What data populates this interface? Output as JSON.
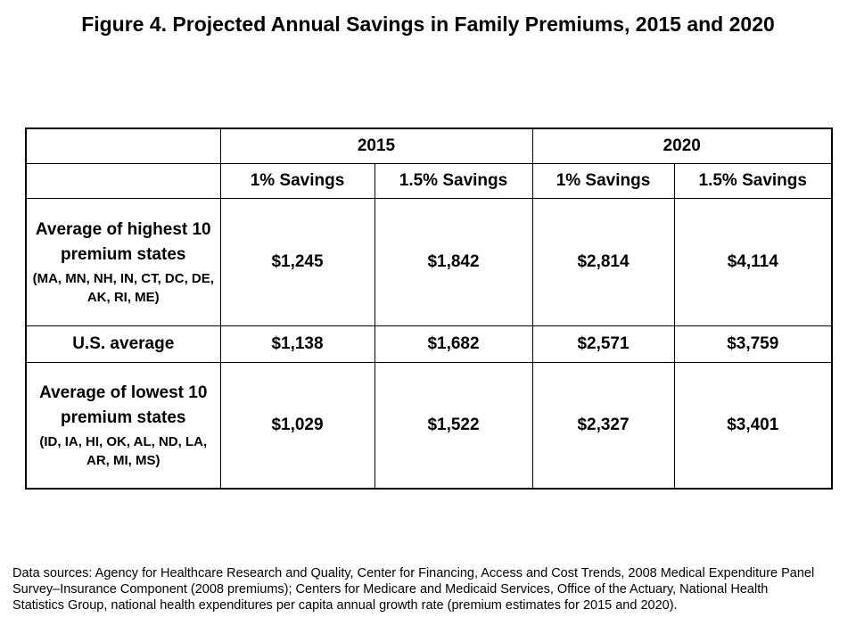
{
  "title": "Figure 4. Projected Annual Savings in Family Premiums, 2015 and 2020",
  "table": {
    "years": [
      "2015",
      "2020"
    ],
    "subheaders": [
      "1% Savings",
      "1.5% Savings",
      "1% Savings",
      "1.5% Savings"
    ],
    "rows": [
      {
        "label": "Average of highest 10 premium states",
        "states": "(MA, MN, NH, IN, CT, DC, DE, AK, RI, ME)",
        "values": [
          "$1,245",
          "$1,842",
          "$2,814",
          "$4,114"
        ]
      },
      {
        "label": "U.S. average",
        "states": "",
        "values": [
          "$1,138",
          "$1,682",
          "$2,571",
          "$3,759"
        ]
      },
      {
        "label": "Average of lowest 10 premium states",
        "states": "(ID, IA, HI, OK, AL, ND, LA, AR, MI, MS)",
        "values": [
          "$1,029",
          "$1,522",
          "$2,327",
          "$3,401"
        ]
      }
    ]
  },
  "source": "Data sources: Agency for Healthcare Research and Quality, Center for Financing, Access and Cost Trends, 2008 Medical Expenditure Panel Survey–Insurance Component (2008 premiums); Centers for Medicare and Medicaid Services, Office of the Actuary, National Health Statistics Group, national health expenditures per capita annual growth rate (premium estimates for 2015 and 2020)."
}
